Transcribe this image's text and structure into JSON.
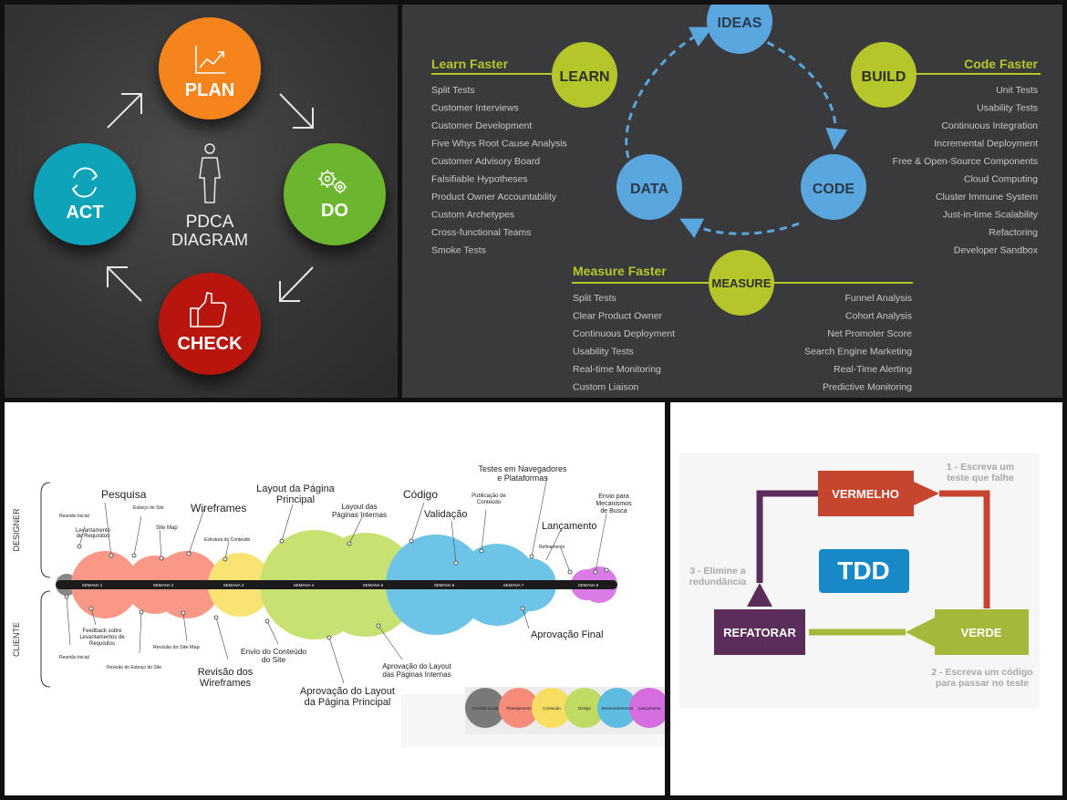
{
  "pdca": {
    "title_line1": "PDCA",
    "title_line2": "DIAGRAM",
    "plan": "PLAN",
    "do": "DO",
    "check": "CHECK",
    "act": "ACT",
    "colors": {
      "plan": "#f5841f",
      "do": "#6cb52d",
      "check": "#b8140f",
      "act": "#0aa3b8"
    }
  },
  "lean": {
    "ideas": "IDEAS",
    "code": "CODE",
    "data": "DATA",
    "learn": "LEARN",
    "build": "BUILD",
    "measure": "MEASURE",
    "learn_faster": {
      "heading": "Learn Faster",
      "items": [
        "Split Tests",
        "Customer Interviews",
        "Customer Development",
        "Five Whys Root Cause Analysis",
        "Customer Advisory Board",
        "Falsifiable Hypotheses",
        "Product Owner Accountability",
        "Custom Archetypes",
        "Cross-functional Teams",
        "Smoke Tests"
      ]
    },
    "code_faster": {
      "heading": "Code Faster",
      "items": [
        "Unit Tests",
        "Usability Tests",
        "Continuous Integration",
        "Incremental Deployment",
        "Free & Open-Source Components",
        "Cloud Computing",
        "Cluster Immune System",
        "Just-in-time Scalability",
        "Refactoring",
        "Developer Sandbox"
      ]
    },
    "measure_faster": {
      "heading": "Measure Faster",
      "left_items": [
        "Split Tests",
        "Clear Product Owner",
        "Continuous Deployment",
        "Usability Tests",
        "Real-time Monitoring",
        "Custom Liaison"
      ],
      "right_items": [
        "Funnel Analysis",
        "Cohort Analysis",
        "Net Promoter Score",
        "Search Engine Marketing",
        "Real-Time Alerting",
        "Predictive Monitoring"
      ]
    },
    "colors": {
      "blue": "#5aa7e0",
      "green": "#b5c62a"
    }
  },
  "timeline": {
    "designer": "DESIGNER",
    "cliente": "CLIENTE",
    "weeks": [
      "SEMANA 1",
      "SEMANA 2",
      "SEMANA 3",
      "SEMANA 4",
      "SEMANA 5",
      "SEMANA 6",
      "SEMANA 7",
      "SEMANA 8"
    ],
    "top_labels": {
      "pesquisa": "Pesquisa",
      "wireframes": "Wireframes",
      "layout_principal": [
        "Layout da Página",
        "Principal"
      ],
      "layout_internas": [
        "Layout das",
        "Páginas Internas"
      ],
      "codigo": "Código",
      "validacao": "Validação",
      "testes": [
        "Testes em Navegadores",
        "e Plataformas"
      ],
      "publicacao": [
        "Publicação de",
        "Conteúdo"
      ],
      "envio": [
        "Envio para",
        "Mecanismos",
        "de Busca"
      ],
      "lancamento": "Lançamento",
      "reuniao_inicial": "Reunião Inicial",
      "levantamento": [
        "Levantamento",
        "de Requisitos"
      ],
      "esboco": "Esboço do Site",
      "site_map": "Site Map",
      "estrutura": "Estrutura do Conteúdo",
      "refinamento": "Refinamento"
    },
    "bottom_labels": {
      "feedback": [
        "Feedback sobre",
        "Levantamentos de",
        "Requisitos"
      ],
      "reuniao_inicial": "Reunião Inicial",
      "revisao_esboco": "Revisão do Esboço do Site",
      "revisao_site_map": "Revisão do Site Map",
      "revisao_wireframes": [
        "Revisão dos",
        "Wireframes"
      ],
      "envio_conteudo": [
        "Envio do Conteúdo",
        "do Site"
      ],
      "aprovacao_principal": [
        "Aprovação do Layout",
        "da Página Principal"
      ],
      "aprovacao_internas": [
        "Aprovação do Layout",
        "das Páginas Internas"
      ],
      "aprovacao_final": "Aprovação Final"
    },
    "legend": [
      "Contato Inicial",
      "Planejamento",
      "Conteúdo",
      "Design",
      "Desenvolvimento",
      "Lançamento"
    ],
    "colors": {
      "gray": "#666666",
      "salmon": "#f87c65",
      "yellow": "#f9dc4c",
      "green": "#b8d94c",
      "blue": "#46b4e0",
      "magenta": "#d157e0"
    }
  },
  "tdd": {
    "center": "TDD",
    "vermelho": "VERMELHO",
    "verde": "VERDE",
    "refatorar": "REFATORAR",
    "step1": [
      "1 - Escreva um",
      "teste que falhe"
    ],
    "step2": [
      "2 - Escreva um código",
      "para passar no teste"
    ],
    "step3": [
      "3 - Elimine a",
      "redundância"
    ],
    "colors": {
      "red": "#c6452e",
      "green": "#a5b83a",
      "purple": "#5a2d5a",
      "blue": "#1789c7"
    }
  }
}
